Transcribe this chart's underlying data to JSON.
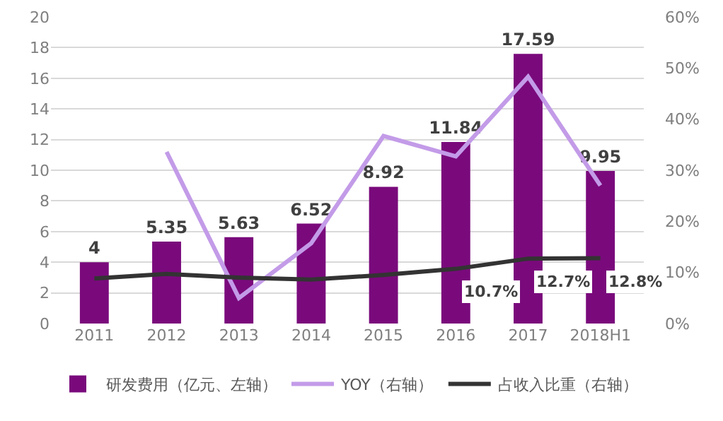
{
  "chart_data": {
    "type": "bar",
    "categories": [
      "2011",
      "2012",
      "2013",
      "2014",
      "2015",
      "2016",
      "2017",
      "2018H1"
    ],
    "series": [
      {
        "name": "研发费用（亿元、左轴）",
        "color": "#7a0a7c",
        "values": [
          4,
          5.35,
          5.63,
          6.52,
          8.92,
          11.84,
          17.59,
          9.95
        ],
        "value_labels": [
          "4",
          "5.35",
          "5.63",
          "6.52",
          "8.92",
          "11.84",
          "17.59",
          "9.95"
        ]
      },
      {
        "name": "YOY（右轴）",
        "type": "line",
        "axis": "y2",
        "color": "#c39be8",
        "values": [
          null,
          33.6,
          5.0,
          15.7,
          36.7,
          32.7,
          48.3,
          27.0
        ]
      },
      {
        "name": "占收入比重（右轴）",
        "type": "line",
        "axis": "y2",
        "color": "#333333",
        "values": [
          8.8,
          9.7,
          9.0,
          8.6,
          9.5,
          10.7,
          12.7,
          12.8
        ],
        "value_labels": [
          null,
          null,
          null,
          null,
          null,
          "10.7%",
          "12.7%",
          "12.8%"
        ]
      }
    ],
    "ylim": [
      0,
      20
    ],
    "yticks": [
      0,
      2,
      4,
      6,
      8,
      10,
      12,
      14,
      16,
      18,
      20
    ],
    "y2lim": [
      0,
      60
    ],
    "y2ticks": [
      {
        "value": 0,
        "label": "0%"
      },
      {
        "value": 10,
        "label": "10%"
      },
      {
        "value": 20,
        "label": "20%"
      },
      {
        "value": 30,
        "label": "30%"
      },
      {
        "value": 40,
        "label": "40%"
      },
      {
        "value": 50,
        "label": "50%"
      },
      {
        "value": 60,
        "label": "60%"
      }
    ],
    "grid": "y",
    "legend": "bottom",
    "marker": "none",
    "line_style": "solid"
  }
}
